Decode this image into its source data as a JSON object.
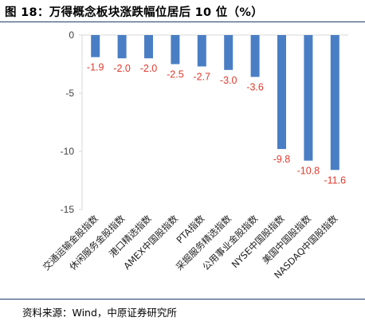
{
  "title": "图 18：万得概念板块涨跌幅位居后 10 位（%）",
  "source": "资料来源：Wind，中原证券研究所",
  "colors": {
    "bar": "#4a7ec4",
    "value_label": "#e03a2e",
    "axis": "#d9d9d9",
    "tick_text": "#404040"
  },
  "chart_data": {
    "type": "bar",
    "categories": [
      "交通运输金股指数",
      "休闲服务金股指数",
      "港口精选指数",
      "AMEX中国股指数",
      "PTA指数",
      "采掘服务精选指数",
      "公用事业金股指数",
      "NYSE中国股指数",
      "美国中国股指数",
      "NASDAQ中国股指数"
    ],
    "values": [
      -1.9,
      -2.0,
      -2.0,
      -2.5,
      -2.7,
      -3.0,
      -3.6,
      -9.8,
      -10.8,
      -11.6
    ],
    "value_labels": [
      "-1.9",
      "-2.0",
      "-2.0",
      "-2.5",
      "-2.7",
      "-3.0",
      "-3.6",
      "-9.8",
      "-10.8",
      "-11.6"
    ],
    "yticks": [
      0,
      -5,
      -10,
      -15
    ],
    "ytick_labels": [
      "0",
      "-5",
      "-10",
      "-15"
    ],
    "ylim": [
      -15,
      0
    ],
    "xlabel": "",
    "ylabel": "",
    "grid": false
  }
}
